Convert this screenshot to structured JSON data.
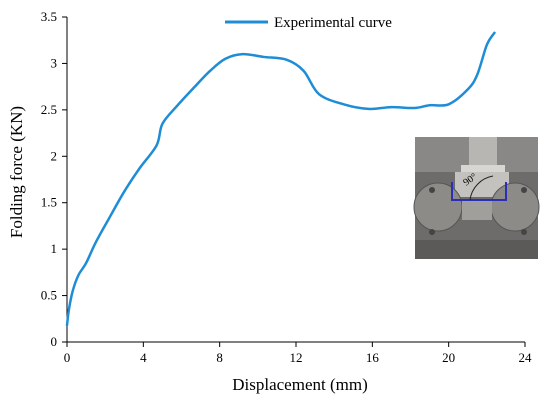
{
  "chart_data": {
    "type": "line",
    "title": "",
    "xlabel": "Displacement (mm)",
    "ylabel": "Folding force (KN)",
    "xlim": [
      0,
      24
    ],
    "ylim": [
      0,
      3.5
    ],
    "x_ticks": [
      "0",
      "4",
      "8",
      "12",
      "16",
      "20",
      "24"
    ],
    "y_ticks": [
      "0",
      "0.5",
      "1",
      "1.5",
      "2",
      "2.5",
      "3",
      "3.5"
    ],
    "grid": false,
    "legend_position": "top-center",
    "series": [
      {
        "name": "Experimental curve",
        "color": "#1f8dd6",
        "points": [
          [
            0.0,
            0.18
          ],
          [
            0.1,
            0.35
          ],
          [
            0.3,
            0.55
          ],
          [
            0.6,
            0.72
          ],
          [
            1.0,
            0.85
          ],
          [
            1.5,
            1.07
          ],
          [
            2.2,
            1.33
          ],
          [
            3.0,
            1.62
          ],
          [
            3.8,
            1.87
          ],
          [
            4.7,
            2.12
          ],
          [
            5.0,
            2.35
          ],
          [
            5.8,
            2.55
          ],
          [
            6.7,
            2.75
          ],
          [
            7.5,
            2.92
          ],
          [
            8.3,
            3.05
          ],
          [
            9.2,
            3.1
          ],
          [
            10.3,
            3.07
          ],
          [
            11.5,
            3.04
          ],
          [
            12.4,
            2.92
          ],
          [
            13.2,
            2.67
          ],
          [
            14.5,
            2.56
          ],
          [
            15.8,
            2.51
          ],
          [
            17.0,
            2.53
          ],
          [
            18.2,
            2.52
          ],
          [
            19.0,
            2.55
          ],
          [
            20.0,
            2.56
          ],
          [
            21.0,
            2.72
          ],
          [
            21.5,
            2.88
          ],
          [
            22.0,
            3.2
          ],
          [
            22.4,
            3.33
          ]
        ]
      }
    ]
  },
  "inset_photo": {
    "annotation": "90°"
  }
}
